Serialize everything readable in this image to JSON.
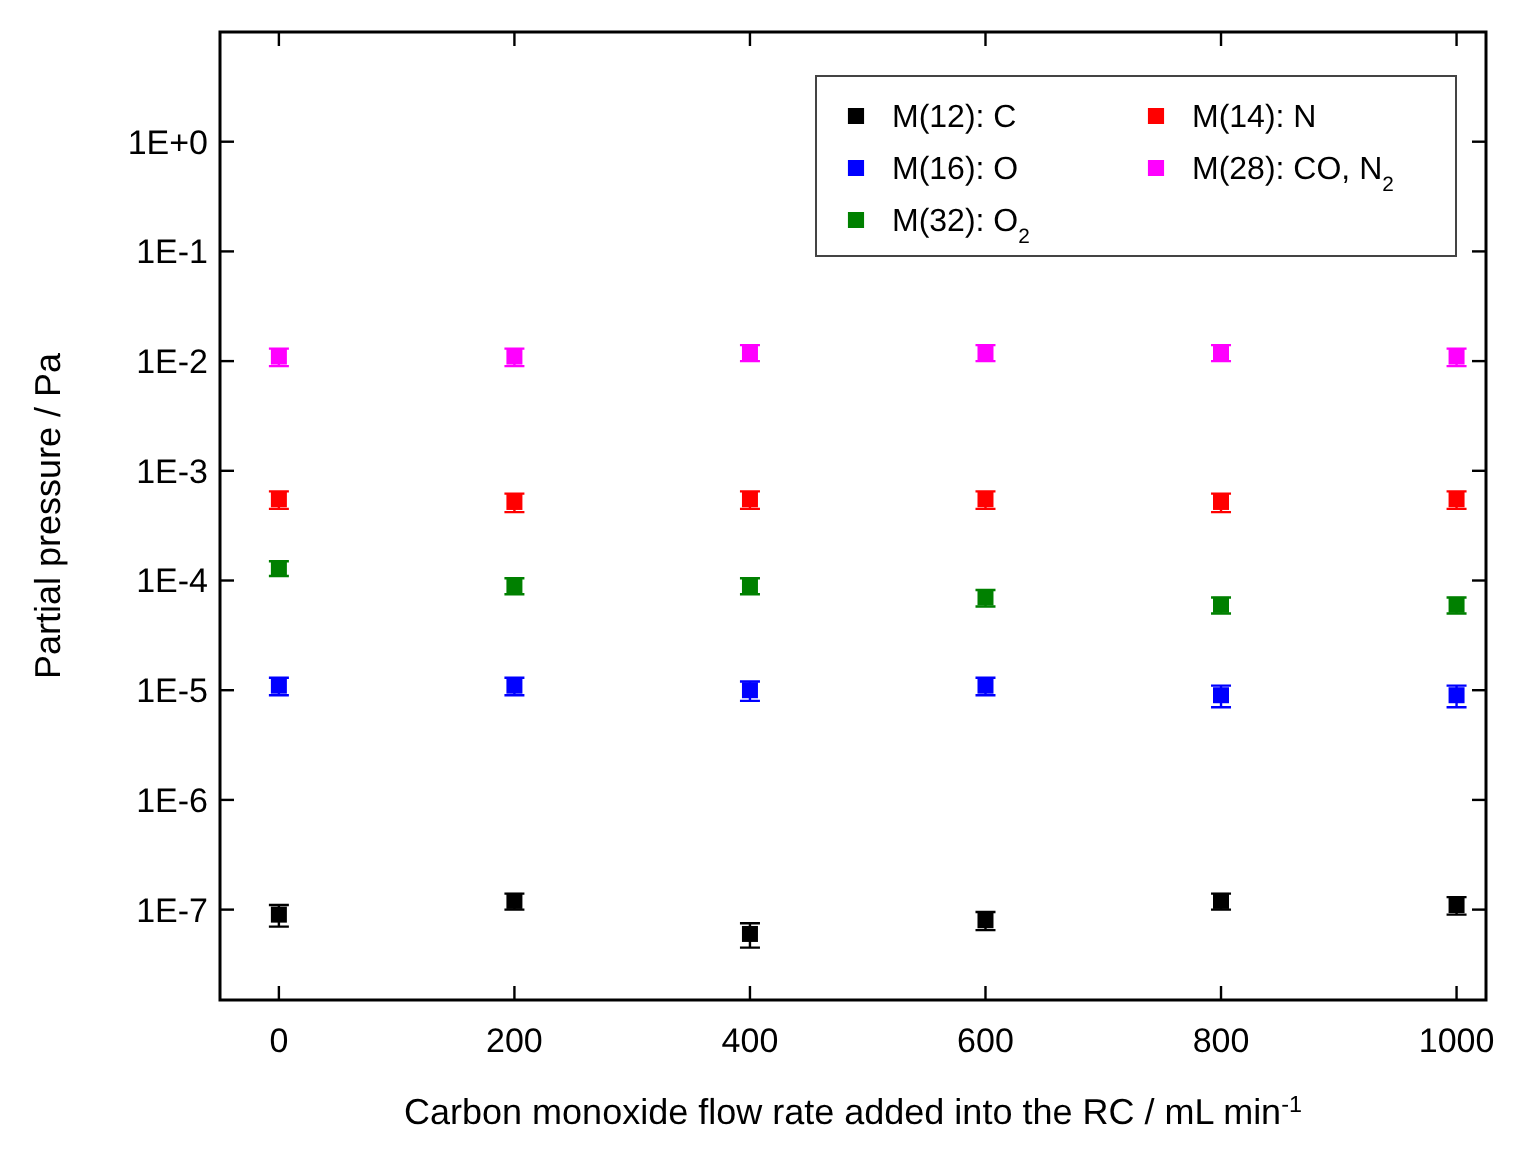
{
  "chart_data": {
    "type": "scatter",
    "xlabel": "Carbon monoxide flow rate added into the RC / mL min$^{-1}$",
    "ylabel": "Partial pressure / Pa",
    "x": [
      0,
      200,
      400,
      600,
      800,
      1000
    ],
    "xlim": [
      -50,
      1025
    ],
    "xticks": [
      0,
      200,
      400,
      600,
      800,
      1000
    ],
    "ylim": [
      1.5e-08,
      10
    ],
    "yticks": [
      {
        "value": 1,
        "label": "1E+0"
      },
      {
        "value": 0.1,
        "label": "1E-1"
      },
      {
        "value": 0.01,
        "label": "1E-2"
      },
      {
        "value": 0.001,
        "label": "1E-3"
      },
      {
        "value": 0.0001,
        "label": "1E-4"
      },
      {
        "value": 1e-05,
        "label": "1E-5"
      },
      {
        "value": 1e-06,
        "label": "1E-6"
      },
      {
        "value": 1e-07,
        "label": "1E-7"
      }
    ],
    "log": "y",
    "grid": false,
    "legend": "top right",
    "marker": "square",
    "series": [
      {
        "name": "M(12): C",
        "color": "#000000",
        "values": [
          9e-08,
          1.2e-07,
          6e-08,
          8e-08,
          1.2e-07,
          1.1e-07
        ],
        "errors": [
          2e-08,
          2e-08,
          1.5e-08,
          1.5e-08,
          2e-08,
          2e-08
        ]
      },
      {
        "name": "M(14): N",
        "color": "#ff0000",
        "values": [
          0.00055,
          0.00052,
          0.00055,
          0.00055,
          0.00052,
          0.00055
        ],
        "errors": [
          0.0001,
          0.0001,
          0.0001,
          0.0001,
          0.0001,
          0.0001
        ]
      },
      {
        "name": "M(16): O",
        "color": "#0000ff",
        "values": [
          1.1e-05,
          1.1e-05,
          1e-05,
          1.1e-05,
          9e-06,
          9e-06
        ],
        "errors": [
          2e-06,
          2e-06,
          2e-06,
          2e-06,
          2e-06,
          2e-06
        ]
      },
      {
        "name": "M(28): CO, N$_{2}$",
        "color": "#ff00ff",
        "values": [
          0.011,
          0.011,
          0.012,
          0.012,
          0.012,
          0.011
        ],
        "errors": [
          0.002,
          0.002,
          0.002,
          0.002,
          0.002,
          0.002
        ]
      },
      {
        "name": "M(32): O$_{2}$",
        "color": "#008000",
        "values": [
          0.00013,
          9e-05,
          9e-05,
          7e-05,
          6e-05,
          6e-05
        ],
        "errors": [
          2e-05,
          1.5e-05,
          1.5e-05,
          1.2e-05,
          1e-05,
          1e-05
        ]
      }
    ]
  }
}
